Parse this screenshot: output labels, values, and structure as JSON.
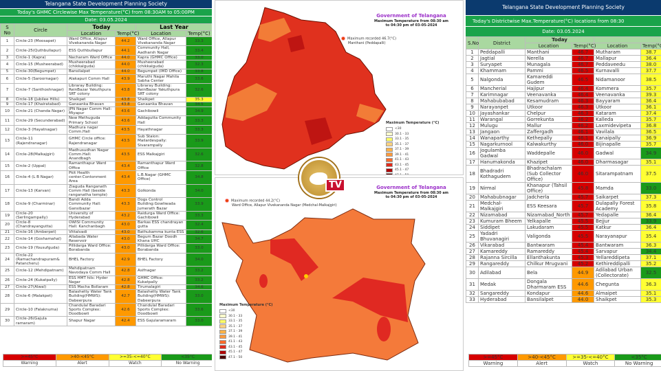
{
  "left": {
    "title": "Telangana State Development Planning Society",
    "subtitle": "Today's GHMC Circlewise Max Temperature(°C) from 08:30AM to 05:00PM",
    "date": "Date: 03.05.2024",
    "headers": {
      "sno": "S No",
      "circle": "Circle",
      "today": "Today",
      "last_year": "Last Year",
      "location": "Location",
      "temp": "Temp(°C)"
    },
    "rows": [
      [
        "1",
        "Circle-23 (Moosapet)",
        "Ward Office, Allapur Vivekananda Nagar",
        "44.2",
        "Ward Office, Allapur Vivekananda Nagar",
        "33.3",
        "green"
      ],
      [
        "2",
        "Circle-25(Quthbullapur)",
        "ESS Quthbullapur",
        "44.1",
        "Community Hall, Aadharsh Nagar",
        "33.4",
        "green"
      ],
      [
        "3",
        "Circle-1 (Kapra)",
        "Nacharam Ward Office",
        "44.0",
        "Kapra (GHMC Office)",
        "33.0",
        "green"
      ],
      [
        "4",
        "Circle-15 (Musheerabad)",
        "Musheerabad (chikkalguda)",
        "44.0",
        "Musheerabad (chikkalguda)",
        "32.3",
        "green"
      ],
      [
        "5",
        "Circle-30(Begumpet)",
        "Bansilalpet",
        "44.0",
        "Begumpet (IMD Office)",
        "33.8",
        "green"
      ],
      [
        "6",
        "Circle-5 (Saroornagar)",
        "Alakapuri Comm Hall",
        "43.9",
        "Maruthi Nagar Mahila Sabha Center",
        "33.6",
        "green"
      ],
      [
        "7",
        "Circle-7 (Santhoshnagar)",
        "Libraray Building: ReinBazar Yakuthpura SRT colony",
        "43.8",
        "Libraray Building: ReinBazar Yakuthpura SRT colony",
        "32.6",
        "green"
      ],
      [
        "8",
        "Circle-18 (Jubilee Hills)",
        "Shaikpet",
        "43.8",
        "Shaikpet",
        "35.3",
        "yellow"
      ],
      [
        "9",
        "Circle-17 (Khairatabad)",
        "Ganaanka Bhavan",
        "43.8",
        "Ganaanka Bhavan",
        "34.5",
        "green"
      ],
      [
        "10",
        "Circle-21 (Chanda Nagar)",
        "JPN Nagar Comm Hall: Miyapur",
        "43.6",
        "Gachibowli",
        "34.9",
        "green"
      ],
      [
        "11",
        "Circle-29 (Secunderabad)",
        "New Methuguda Primary School",
        "43.6",
        "Addagutta Community Hall",
        "33.3",
        "green"
      ],
      [
        "12",
        "Circle-3 (Hayatnagar)",
        "Madhura nagar Comm.Hall",
        "43.5",
        "Hayathnagar",
        "33.3",
        "green"
      ],
      [
        "13",
        "Circle-11 (Rajendranagar)",
        "GHMC Circle office: Rajendranagar",
        "43.5",
        "Sub Staion: Mailardevpally: Sivarampally",
        "33.9",
        "green"
      ],
      [
        "14",
        "Circle-28(Malkajgiri)",
        "Madhusudhan Nagar Comm.Hall: Anandbagh",
        "43.5",
        "ESS Malkajgiri",
        "32.6",
        "green"
      ],
      [
        "15",
        "Circle-2 (Uppal)",
        "Ramanthapur Ward Office",
        "43.4",
        "Ramanthapur Ward Office",
        "32.8",
        "green"
      ],
      [
        "16",
        "Circle-4 (L B Nagar)",
        "Pkit Health center:Contonment Area",
        "43.4",
        "L.B.Nagar (GHMC Office)",
        "34.8",
        "green"
      ],
      [
        "17",
        "Circle-13 (Karvan)",
        "Ziaguda Ranganath Comm Hall (beside ranganatha temple)",
        "43.3",
        "Golkonda",
        "34.0",
        "green"
      ],
      [
        "18",
        "Circle-9 (Charminar)",
        "Bandi Adda Community Hall: Gansibazar",
        "43.3",
        "Dogs Control Building:Gowliwada Jumerath Bazar",
        "33.9",
        "green"
      ],
      [
        "19",
        "Circle-20 (Serlingampally)",
        "University of Hyderabad",
        "43.2",
        "Raidurga Ward Office: Gachibowli",
        "33.3",
        "green"
      ],
      [
        "20",
        "Circle-8 (Chandrayangutta)",
        "OWISI Community Hall: Kanchanbagh",
        "43.0",
        "Barkas ESS chandrayan gutta",
        "32.4",
        "green"
      ],
      [
        "21",
        "Circle-16 (Amberpet)",
        "Vittalvadi",
        "43.0",
        "Bathukamma kunta ESS",
        "32.6",
        "green"
      ],
      [
        "22",
        "Circle-14 (Goshamahal)",
        "Allabada Water Reservoir",
        "43.0",
        "Begum Bazar Doodh Khana UHC",
        "34.7",
        "green"
      ],
      [
        "23",
        "Circle-19 (Yousufguda)",
        "Pillidarga Ward Office: Borabanda",
        "43.0",
        "Pillidarga Ward Office: Borabanda",
        "33.0",
        "green"
      ],
      [
        "24",
        "Circle-22 (Ramachandrapuram& Patancheru)",
        "BHEL Factory",
        "42.9",
        "BHEL Factory",
        "34.0",
        "green"
      ],
      [
        "25",
        "Circle-12 (Mehdipatnam)",
        "Mehdipatnam Navodaya Comm Hall",
        "42.8",
        "Asifnagar",
        "33.2",
        "green"
      ],
      [
        "26",
        "Circle-24 (Kukatpally)",
        "ESS HMT hils: Hyder Nagar",
        "42.8",
        "GHMC Office: Kukatpally",
        "33.2",
        "green"
      ],
      [
        "27",
        "Circle-27(Alwal)",
        "ESS Macha Bollaram",
        "42.8",
        "Tirumalagiri",
        "34.6",
        "green"
      ],
      [
        "28",
        "Circle-6 (Malakpet)",
        "Balashetty Water Tank Building(HMWS): Dabeerpura",
        "42.7",
        "Balashetty Water Tank Building(HMWS): Dabeerpura",
        "33.0",
        "green"
      ],
      [
        "29",
        "Circle-10 (Falaknuma)",
        "Chandulal Baradari Sports Complex: Doodbowli",
        "42.6",
        "Chandulal Baradari Sports Complex: Doodbowli",
        "33.6",
        "green"
      ],
      [
        "30",
        "Circle-26(Gajula ramaram)",
        "Shapur Nagar",
        "42.4",
        "ESS Gajularamaram",
        "33.0",
        "green"
      ]
    ]
  },
  "right": {
    "title": "Telangana State Development Planning Society",
    "subtitle": "Today's Districtwise Max.Temperature(°C) locations from 08:30",
    "date": "Date: 03.05.2024",
    "headers": {
      "sno": "S.No",
      "district": "District",
      "today": "Today",
      "location": "Location",
      "temp": "Temp(°C)"
    },
    "rows": [
      [
        "1",
        "Peddapalli",
        "Manthani",
        "46.7",
        "Mutharam",
        "38.7",
        "yellow"
      ],
      [
        "2",
        "Jagtial",
        "Nerella",
        "46.7",
        "Mallapur",
        "36.4",
        "yellow"
      ],
      [
        "3",
        "Suryapet",
        "Munagala",
        "46.7",
        "Peddaveedu",
        "38.0",
        "yellow"
      ],
      [
        "4",
        "Khammam",
        "Pammi",
        "46.5",
        "Kurnavalli",
        "37.7",
        "yellow"
      ],
      [
        "5",
        "Nalgonda",
        "Kamareddi Gudem",
        "46.5",
        "Nidamanoor",
        "38.5",
        "yellow"
      ],
      [
        "6",
        "Mancherial",
        "Hajipur",
        "46.4",
        "Kommera",
        "35.7",
        "yellow"
      ],
      [
        "7",
        "Karimnagar",
        "Veenavanka",
        "46.4",
        "Veenavanka",
        "39.3",
        "yellow"
      ],
      [
        "8",
        "Mahabubabad",
        "Kesamudram",
        "46.3",
        "Bayyaram",
        "36.4",
        "yellow"
      ],
      [
        "9",
        "Narayanpet",
        "Utkoor",
        "46.3",
        "Utkoor",
        "36.1",
        "yellow"
      ],
      [
        "10",
        "Jayashankar",
        "Chelpur",
        "46.3",
        "Kataram",
        "37.4",
        "yellow"
      ],
      [
        "11",
        "Warangal",
        "Gorrekunta",
        "46.2",
        "Kalleda",
        "35.7",
        "yellow"
      ],
      [
        "12",
        "Mulugu",
        "Mallur",
        "46.2",
        "Laxmidevipeta",
        "36.8",
        "yellow"
      ],
      [
        "13",
        "Jangaon",
        "Zaffergadh",
        "46.1",
        "Vavilala",
        "36.5",
        "yellow"
      ],
      [
        "14",
        "Wanaparthy",
        "Kethepally",
        "46.1",
        "Kanaipally",
        "36.9",
        "yellow"
      ],
      [
        "15",
        "Nagarkurnool",
        "Kalwakurthy",
        "46.0",
        "Bijinapalle",
        "35.7",
        "yellow"
      ],
      [
        "16",
        "Jogulamba Gadwal",
        "Waddepalle",
        "46.0",
        "Gadwal",
        "34.9",
        "green"
      ],
      [
        "17",
        "Hanumakonda",
        "Khazipet",
        "46.0",
        "Dharmasagar",
        "35.1",
        "yellow"
      ],
      [
        "18",
        "Bhadradri Kothagudem",
        "Bhadrachalam (Sub Collector Office)",
        "46.0",
        "Sitarampatnam",
        "37.5",
        "yellow"
      ],
      [
        "19",
        "Nirmal",
        "Khanapur (Tahsil Office)",
        "45.8",
        "Mamda",
        "33.0",
        "green"
      ],
      [
        "20",
        "Mahabubnagar",
        "Jadcherla",
        "45.7",
        "Saikarpet",
        "37.3",
        "yellow"
      ],
      [
        "21",
        "Medchal-Malkajgiri",
        "ESS Keesara",
        "45.7",
        "Dulapally Forest Academy",
        "35.8",
        "yellow"
      ],
      [
        "22",
        "Nizamabad",
        "Nizamabad_North",
        "45.7",
        "Yedapalle",
        "36.4",
        "yellow"
      ],
      [
        "23",
        "Kumuram Bheem",
        "Yelkapalle",
        "45.5",
        "Bejjur",
        "33.9",
        "green"
      ],
      [
        "24",
        "Siddipet",
        "Lakudaram",
        "45.5",
        "Katkur",
        "36.4",
        "yellow"
      ],
      [
        "25",
        "Yadadri Bhuvanagiri",
        "Valigonda",
        "45.5",
        "Narayanapur",
        "35.4",
        "yellow"
      ],
      [
        "26",
        "Vikarabad",
        "Bantwaram",
        "45.4",
        "Bantwaram",
        "36.3",
        "yellow"
      ],
      [
        "27",
        "Kamareddy",
        "Ramareddy",
        "45.4",
        "Sarvapur",
        "34.4",
        "green"
      ],
      [
        "28",
        "Rajanna Sircilla",
        "Ellanthakunta",
        "45.3",
        "Yellareddipeta",
        "37.1",
        "yellow"
      ],
      [
        "29",
        "Rangareddy",
        "Chilkur Mrugvani",
        "45.2",
        "Kethireddipalli",
        "35.2",
        "yellow"
      ],
      [
        "30",
        "Adilabad",
        "Bela",
        "44.9",
        "Adilabad Urban (Collectorate)",
        "32.5",
        "green"
      ],
      [
        "31",
        "Medak",
        "Dongala Dharmaram ESS",
        "44.6",
        "Chegunta",
        "36.3",
        "yellow"
      ],
      [
        "32",
        "Sangareddy",
        "Kondapur",
        "44.6",
        "Almaipet",
        "35.1",
        "yellow"
      ],
      [
        "33",
        "Hyderabad",
        "Bansilalpet",
        "44.0",
        "Shaikpet",
        "35.3",
        "yellow"
      ]
    ]
  },
  "legend": {
    "ranges": [
      ">=45°C",
      ">40-<45°C",
      ">=35-<=40°C",
      "<35°C"
    ],
    "labels": [
      "Warning",
      "Alert",
      "Watch",
      "No Warning"
    ],
    "colors": [
      "#d60000",
      "#ff9900",
      "#ffff33",
      "#1a9a1a"
    ]
  },
  "map_top": {
    "gov": "Government of Telangana",
    "subtitle": "Maximum Temperature from 08:30 am to 04:30 pm of 03-05-2024",
    "max_recorded": "Maximum recorded 46.7(°C)",
    "max_location": "Manthani (Peddapalli)"
  },
  "map_bottom": {
    "gov": "Government of Telangana",
    "subtitle": "Maximum Temperature from 08:30 am to 04:30 pm of 03-05-2024",
    "max_recorded": "Maximum recorded 44.2(°C)",
    "max_location": "Ward Office, Allapur Vivekananda Nagar (Medchal-Malkajgiri)"
  },
  "map_legend": {
    "title": "Maximum Temperature (°C)",
    "items": [
      "<30",
      "30.1 - 33",
      "33.1 - 35",
      "35.1 - 37",
      "37.1 - 39",
      "39.1 - 41",
      "41.1 - 43",
      "43.1 - 45",
      "45.1 - 47",
      "47.1 - 50"
    ],
    "colors": [
      "#ffffff",
      "#ffffcc",
      "#ffff66",
      "#ffd27f",
      "#ffb347",
      "#ff9a3c",
      "#ff6a2a",
      "#e02a1a",
      "#b00000",
      "#4a0000"
    ]
  },
  "logo": {
    "text": "TV"
  }
}
